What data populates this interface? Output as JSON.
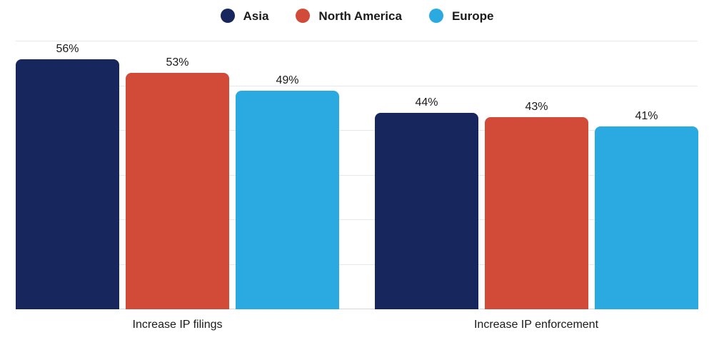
{
  "chart_data": {
    "type": "bar",
    "title": "",
    "categories": [
      "Increase IP filings",
      "Increase IP enforcement"
    ],
    "series": [
      {
        "name": "Asia",
        "color": "#17265C",
        "values": [
          56,
          44
        ]
      },
      {
        "name": "North America",
        "color": "#D24A38",
        "values": [
          53,
          43
        ]
      },
      {
        "name": "Europe",
        "color": "#2AAAE1",
        "values": [
          49,
          41
        ]
      }
    ],
    "value_suffix": "%",
    "data_labels": [
      [
        "56%",
        "53%",
        "49%"
      ],
      [
        "44%",
        "43%",
        "41%"
      ]
    ],
    "ylim": [
      0,
      60
    ],
    "gridline_step": 10,
    "grid": true,
    "legend_position": "top",
    "xlabel": "",
    "ylabel": ""
  },
  "colors": {
    "gridline": "#E8E8EA",
    "baseline": "#D6D6DC",
    "text": "#1A1A1A",
    "background": "#FFFFFF"
  }
}
